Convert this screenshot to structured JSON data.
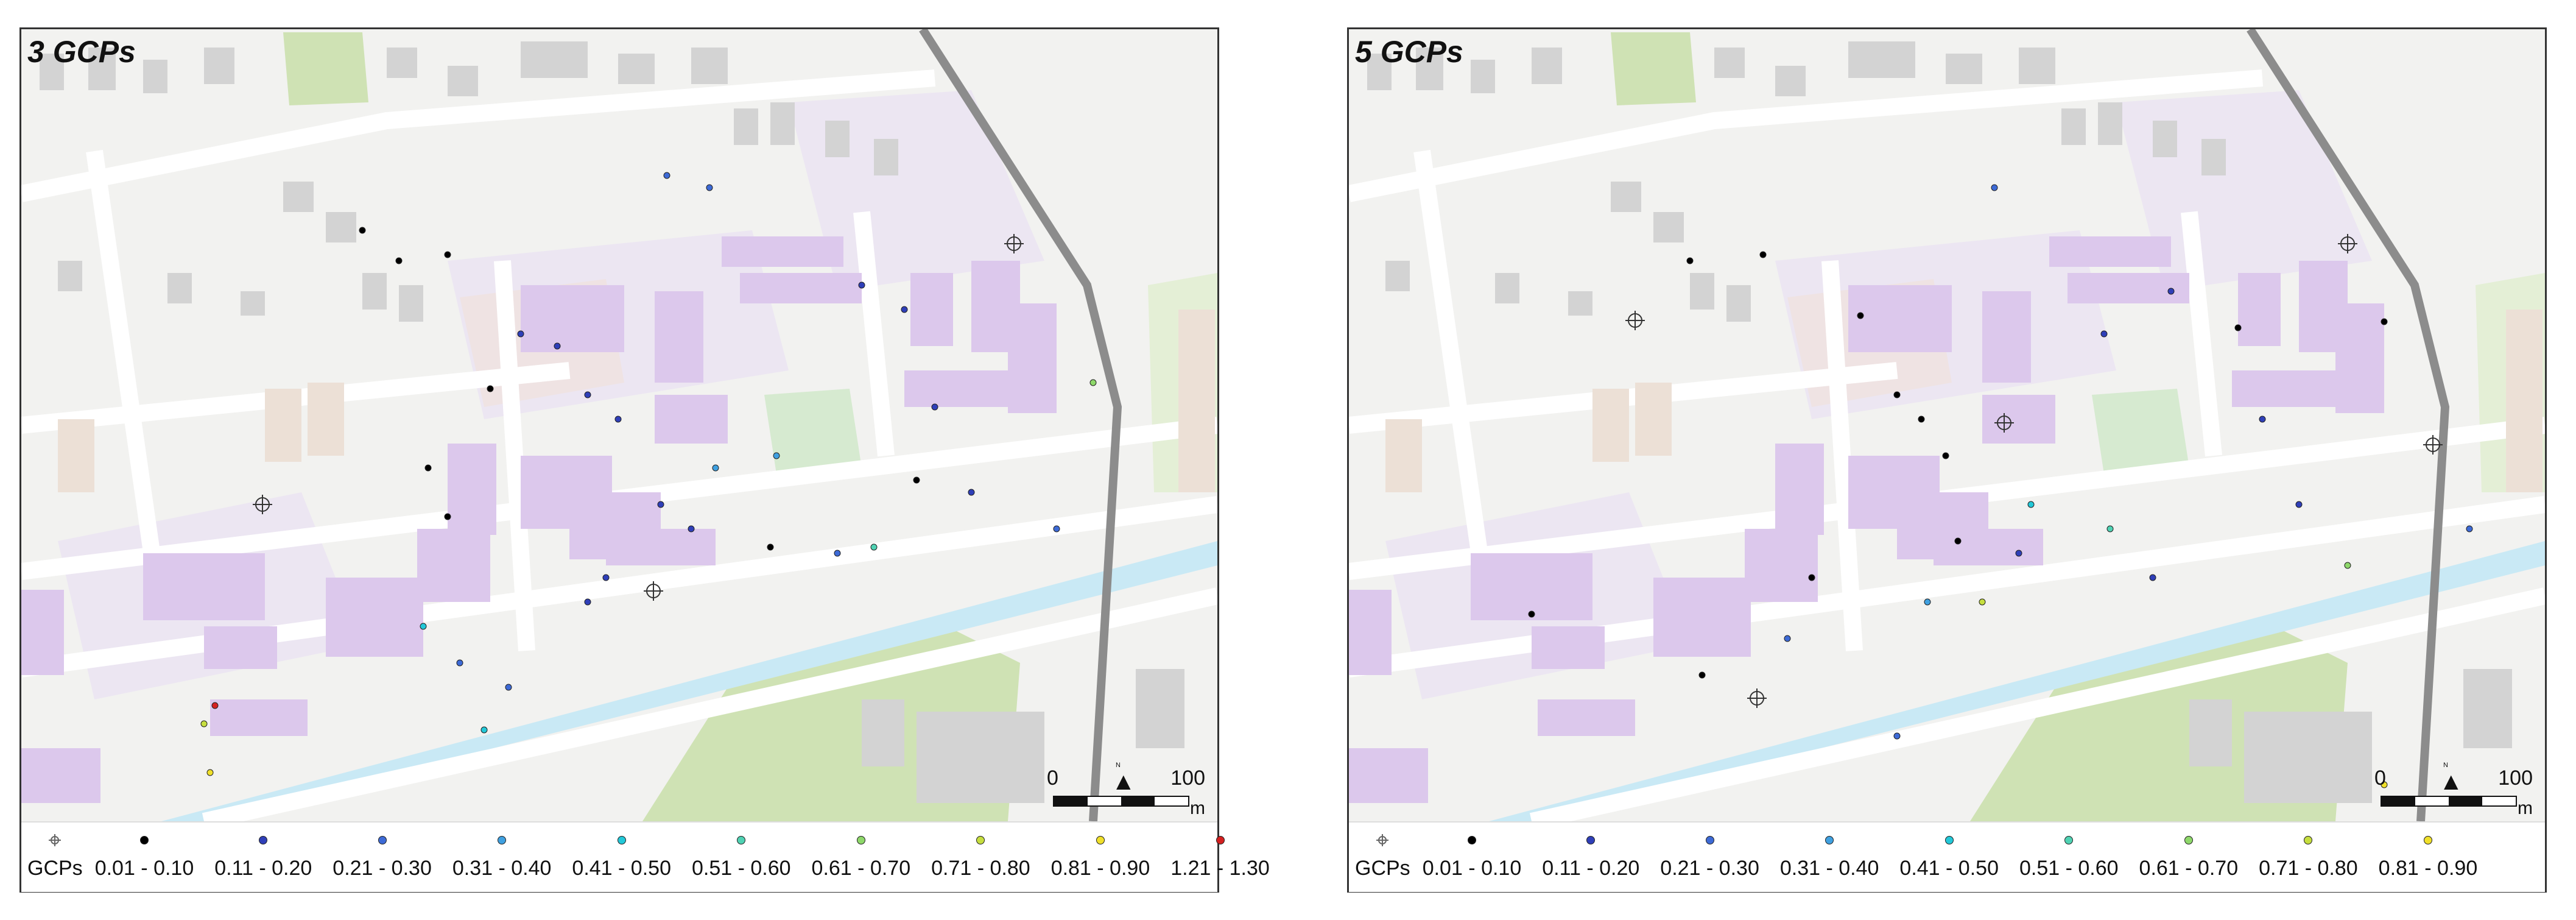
{
  "panels": [
    {
      "title": "3 GCPs",
      "legend_title": "GCPs",
      "legend": [
        {
          "label": "0.01 - 0.10",
          "color": "#000000"
        },
        {
          "label": "0.11 - 0.20",
          "color": "#2f3fb8"
        },
        {
          "label": "0.21 - 0.30",
          "color": "#3d6ad6"
        },
        {
          "label": "0.31 - 0.40",
          "color": "#3fa0e0"
        },
        {
          "label": "0.41 - 0.50",
          "color": "#22c8d8"
        },
        {
          "label": "0.51 - 0.60",
          "color": "#4fd2b3"
        },
        {
          "label": "0.61 - 0.70",
          "color": "#8ed86a"
        },
        {
          "label": "0.71 - 0.80",
          "color": "#c6de3e"
        },
        {
          "label": "0.81 - 0.90",
          "color": "#f0e02a"
        },
        {
          "label": "1.21 - 1.30",
          "color": "#d42020"
        }
      ],
      "scale": {
        "start": "0",
        "end": "100",
        "unit": "m"
      }
    },
    {
      "title": "5 GCPs",
      "legend_title": "GCPs",
      "legend": [
        {
          "label": "0.01 - 0.10",
          "color": "#000000"
        },
        {
          "label": "0.11 - 0.20",
          "color": "#2f3fb8"
        },
        {
          "label": "0.21 - 0.30",
          "color": "#3d6ad6"
        },
        {
          "label": "0.31 - 0.40",
          "color": "#3fa0e0"
        },
        {
          "label": "0.41 - 0.50",
          "color": "#22c8d8"
        },
        {
          "label": "0.51 - 0.60",
          "color": "#4fd2b3"
        },
        {
          "label": "0.61 - 0.70",
          "color": "#8ed86a"
        },
        {
          "label": "0.71 - 0.80",
          "color": "#c6de3e"
        },
        {
          "label": "0.81 - 0.90",
          "color": "#f0e02a"
        }
      ],
      "scale": {
        "start": "0",
        "end": "100",
        "unit": "m"
      }
    }
  ],
  "colors": {
    "background": "#f2f2f0",
    "building": "#d3d3d3",
    "campus_building": "#dcc8ec",
    "campus_area": "#ece6f2",
    "park": "#cfe2b4",
    "river": "#c9e9f5",
    "railway": "#8c8c8c"
  }
}
